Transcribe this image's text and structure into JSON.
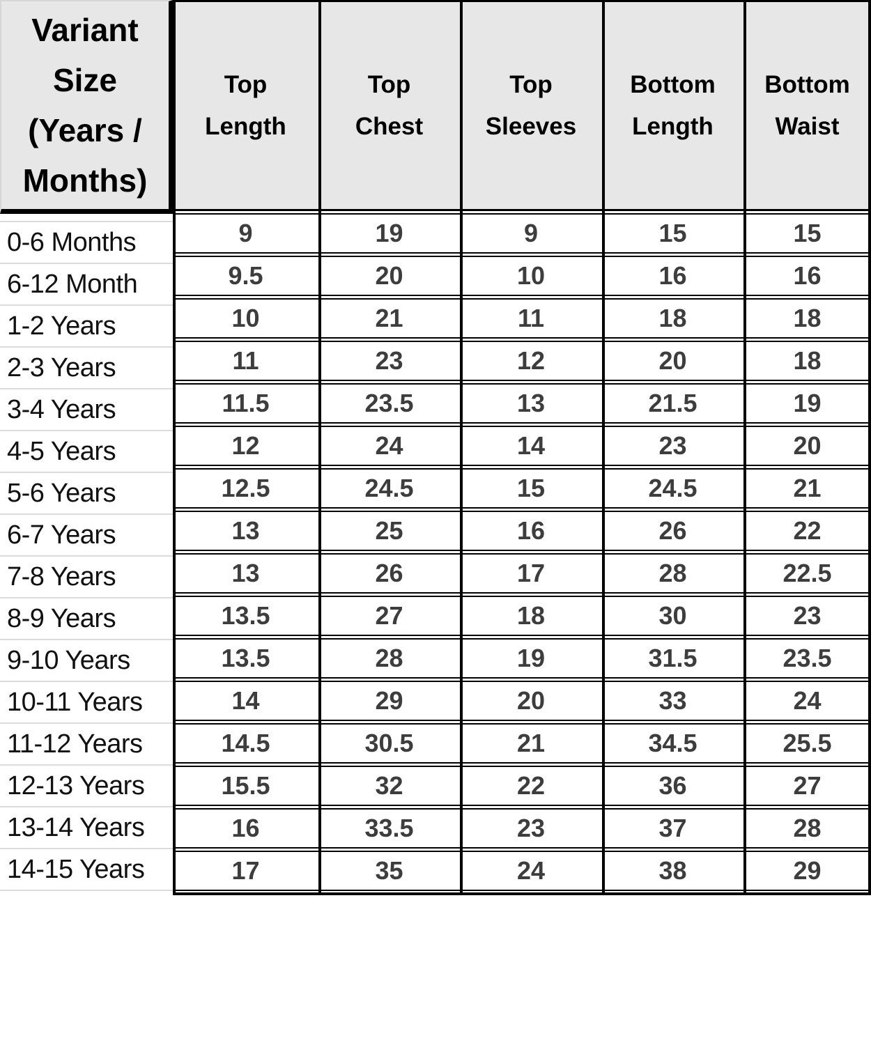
{
  "table": {
    "corner_header": "Variant Size (Years / Months)",
    "columns": [
      "Top Length",
      "Top Chest",
      "Top Sleeves",
      "Bottom Length",
      "Bottom Waist"
    ],
    "rows": [
      {
        "label": "0-6 Months",
        "values": [
          "9",
          "19",
          "9",
          "15",
          "15"
        ]
      },
      {
        "label": "6-12 Month",
        "values": [
          "9.5",
          "20",
          "10",
          "16",
          "16"
        ]
      },
      {
        "label": "1-2 Years",
        "values": [
          "10",
          "21",
          "11",
          "18",
          "18"
        ]
      },
      {
        "label": "2-3 Years",
        "values": [
          "11",
          "23",
          "12",
          "20",
          "18"
        ]
      },
      {
        "label": "3-4 Years",
        "values": [
          "11.5",
          "23.5",
          "13",
          "21.5",
          "19"
        ]
      },
      {
        "label": "4-5 Years",
        "values": [
          "12",
          "24",
          "14",
          "23",
          "20"
        ]
      },
      {
        "label": "5-6 Years",
        "values": [
          "12.5",
          "24.5",
          "15",
          "24.5",
          "21"
        ]
      },
      {
        "label": "6-7 Years",
        "values": [
          "13",
          "25",
          "16",
          "26",
          "22"
        ]
      },
      {
        "label": "7-8 Years",
        "values": [
          "13",
          "26",
          "17",
          "28",
          "22.5"
        ]
      },
      {
        "label": "8-9 Years",
        "values": [
          "13.5",
          "27",
          "18",
          "30",
          "23"
        ]
      },
      {
        "label": "9-10 Years",
        "values": [
          "13.5",
          "28",
          "19",
          "31.5",
          "23.5"
        ]
      },
      {
        "label": "10-11 Years",
        "values": [
          "14",
          "29",
          "20",
          "33",
          "24"
        ]
      },
      {
        "label": "11-12 Years",
        "values": [
          "14.5",
          "30.5",
          "21",
          "34.5",
          "25.5"
        ]
      },
      {
        "label": "12-13 Years",
        "values": [
          "15.5",
          "32",
          "22",
          "36",
          "27"
        ]
      },
      {
        "label": "13-14 Years",
        "values": [
          "16",
          "33.5",
          "23",
          "37",
          "28"
        ]
      },
      {
        "label": "14-15 Years",
        "values": [
          "17",
          "35",
          "24",
          "38",
          "29"
        ]
      }
    ],
    "colors": {
      "header_bg": "#e7e7e7",
      "grid_border": "#000000",
      "value_text": "#3d3d3d",
      "label_text": "#111111",
      "label_separator": "#dcdcdc"
    }
  }
}
